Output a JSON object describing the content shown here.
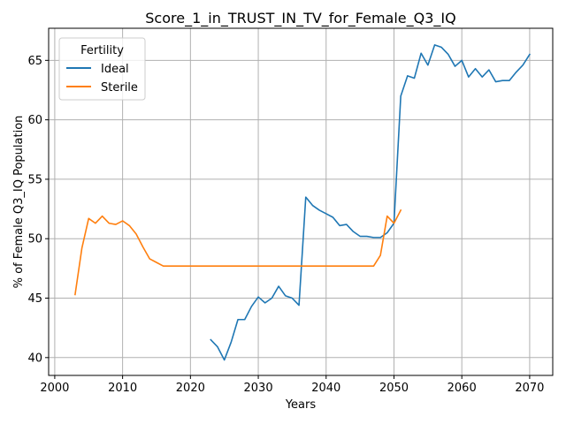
{
  "chart_data": {
    "type": "line",
    "title": "Score_1_in_TRUST_IN_TV_for_Female_Q3_IQ",
    "xlabel": "Years",
    "ylabel": "% of Female Q3_IQ Population",
    "xlim": [
      1999.1,
      2073.4
    ],
    "ylim": [
      38.5,
      67.7
    ],
    "xticks": [
      2000,
      2010,
      2020,
      2030,
      2040,
      2050,
      2060,
      2070
    ],
    "yticks": [
      40,
      45,
      50,
      55,
      60,
      65
    ],
    "grid": true,
    "legend": {
      "title": "Fertility",
      "placement": "top-left",
      "entries": [
        "Ideal",
        "Sterile"
      ]
    },
    "series": [
      {
        "name": "Ideal",
        "color": "#1f77b4",
        "x": [
          2023,
          2024,
          2025,
          2026,
          2027,
          2028,
          2029,
          2030,
          2031,
          2032,
          2033,
          2034,
          2035,
          2036,
          2037,
          2038,
          2039,
          2040,
          2041,
          2042,
          2043,
          2044,
          2045,
          2046,
          2047,
          2048,
          2049,
          2050,
          2051,
          2052,
          2053,
          2054,
          2055,
          2056,
          2057,
          2058,
          2059,
          2060,
          2061,
          2062,
          2063,
          2064,
          2065,
          2066,
          2067,
          2068,
          2069,
          2070
        ],
        "y": [
          41.5,
          40.9,
          39.8,
          41.3,
          43.2,
          43.2,
          44.3,
          45.1,
          44.6,
          45.0,
          46.0,
          45.2,
          45.0,
          44.4,
          53.5,
          52.8,
          52.4,
          52.1,
          51.8,
          51.1,
          51.2,
          50.6,
          50.2,
          50.2,
          50.1,
          50.1,
          50.5,
          51.3,
          62.0,
          63.7,
          63.5,
          65.6,
          64.6,
          66.3,
          66.1,
          65.5,
          64.5,
          65.0,
          63.6,
          64.3,
          63.6,
          64.2,
          63.2,
          63.3,
          63.3,
          64.0,
          64.6,
          65.5
        ]
      },
      {
        "name": "Sterile",
        "color": "#ff7f0e",
        "x": [
          2003,
          2004,
          2005,
          2006,
          2007,
          2008,
          2009,
          2010,
          2011,
          2012,
          2013,
          2014,
          2015,
          2016,
          2017,
          2018,
          2019,
          2020,
          2021,
          2022,
          2023,
          2024,
          2025,
          2026,
          2027,
          2028,
          2029,
          2030,
          2031,
          2032,
          2033,
          2034,
          2035,
          2036,
          2037,
          2038,
          2039,
          2040,
          2041,
          2042,
          2043,
          2044,
          2045,
          2046,
          2047,
          2048,
          2049,
          2050,
          2051
        ],
        "y": [
          45.3,
          49.2,
          51.7,
          51.3,
          51.9,
          51.3,
          51.2,
          51.5,
          51.1,
          50.4,
          49.3,
          48.3,
          48.0,
          47.7,
          47.7,
          47.7,
          47.7,
          47.7,
          47.7,
          47.7,
          47.7,
          47.7,
          47.7,
          47.7,
          47.7,
          47.7,
          47.7,
          47.7,
          47.7,
          47.7,
          47.7,
          47.7,
          47.7,
          47.7,
          47.7,
          47.7,
          47.7,
          47.7,
          47.7,
          47.7,
          47.7,
          47.7,
          47.7,
          47.7,
          47.7,
          48.6,
          51.9,
          51.3,
          52.4
        ]
      }
    ]
  }
}
